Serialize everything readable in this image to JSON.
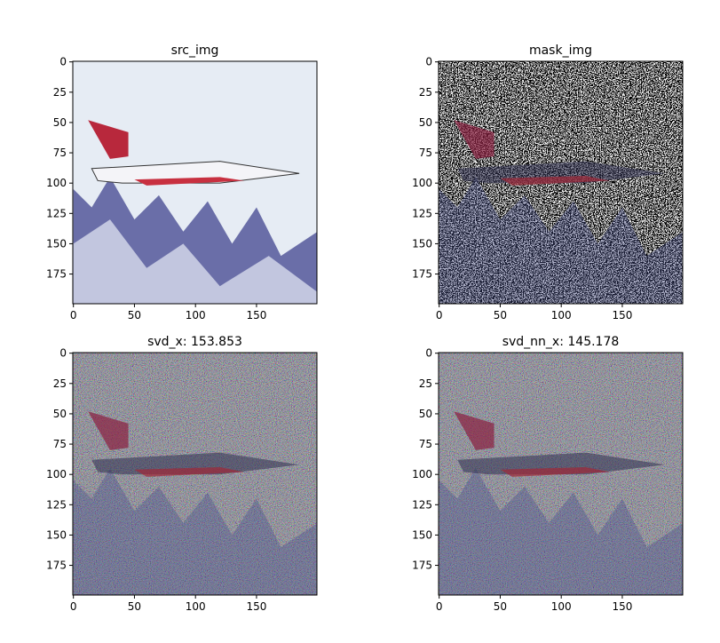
{
  "chart_data": [
    {
      "type": "image",
      "title": "src_img",
      "xlim": [
        -0.5,
        199.5
      ],
      "ylim": [
        199.5,
        -0.5
      ],
      "xticks": [
        0,
        50,
        100,
        150
      ],
      "yticks": [
        0,
        25,
        50,
        75,
        100,
        125,
        150,
        175
      ]
    },
    {
      "type": "image",
      "title": "mask_img",
      "xlim": [
        -0.5,
        199.5
      ],
      "ylim": [
        199.5,
        -0.5
      ],
      "xticks": [
        0,
        50,
        100,
        150
      ],
      "yticks": [
        0,
        25,
        50,
        75,
        100,
        125,
        150,
        175
      ]
    },
    {
      "type": "image",
      "title": "svd_x: 153.853",
      "xlim": [
        -0.5,
        199.5
      ],
      "ylim": [
        199.5,
        -0.5
      ],
      "xticks": [
        0,
        50,
        100,
        150
      ],
      "yticks": [
        0,
        25,
        50,
        75,
        100,
        125,
        150,
        175
      ]
    },
    {
      "type": "image",
      "title": "svd_nn_x: 145.178",
      "xlim": [
        -0.5,
        199.5
      ],
      "ylim": [
        199.5,
        -0.5
      ],
      "xticks": [
        0,
        50,
        100,
        150
      ],
      "yticks": [
        0,
        25,
        50,
        75,
        100,
        125,
        150,
        175
      ]
    }
  ]
}
